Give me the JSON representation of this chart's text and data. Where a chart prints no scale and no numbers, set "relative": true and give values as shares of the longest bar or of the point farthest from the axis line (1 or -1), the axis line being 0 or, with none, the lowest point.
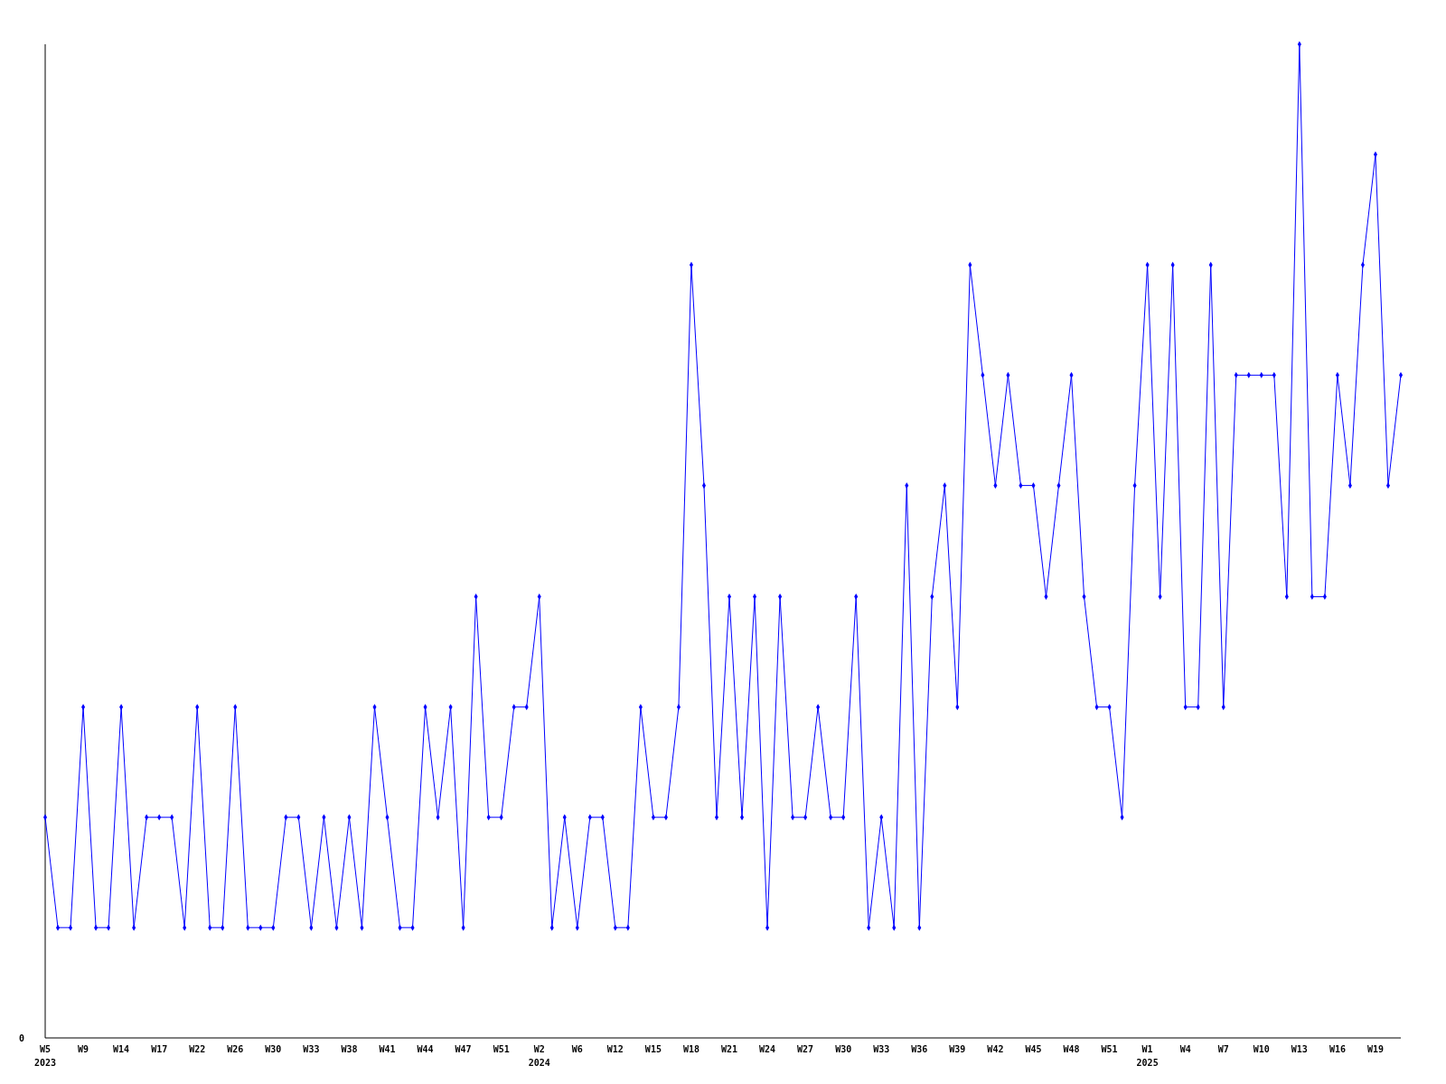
{
  "chart_data": {
    "type": "line",
    "relative": true,
    "marker": "diamond",
    "line_style": "solid",
    "categories": [
      "W5\n2023",
      null,
      null,
      "W9",
      null,
      null,
      "W14",
      null,
      null,
      "W17",
      null,
      null,
      "W22",
      null,
      null,
      "W26",
      null,
      null,
      "W30",
      null,
      null,
      "W33",
      null,
      null,
      "W38",
      null,
      null,
      "W41",
      null,
      null,
      "W44",
      null,
      null,
      "W47",
      null,
      null,
      "W51",
      null,
      null,
      "W2\n2024",
      null,
      null,
      "W6",
      null,
      null,
      "W12",
      null,
      null,
      "W15",
      null,
      null,
      "W18",
      null,
      null,
      "W21",
      null,
      null,
      "W24",
      null,
      null,
      "W27",
      null,
      null,
      "W30",
      null,
      null,
      "W33",
      null,
      null,
      "W36",
      null,
      null,
      "W39",
      null,
      null,
      "W42",
      null,
      null,
      "W45",
      null,
      null,
      "W48",
      null,
      null,
      "W51",
      null,
      null,
      "W1\n2025",
      null,
      null,
      "W4",
      null,
      null,
      "W7",
      null,
      null,
      "W10",
      null,
      null,
      "W13",
      null,
      null,
      "W16",
      null,
      null,
      "W19",
      null,
      null
    ],
    "series": [
      {
        "color": "#0000ff",
        "values": [
          0.222,
          0.111,
          0.111,
          0.333,
          0.111,
          0.111,
          0.333,
          0.111,
          0.222,
          0.222,
          0.222,
          0.111,
          0.333,
          0.111,
          0.111,
          0.333,
          0.111,
          0.111,
          0.111,
          0.222,
          0.222,
          0.111,
          0.222,
          0.111,
          0.222,
          0.111,
          0.333,
          0.222,
          0.111,
          0.111,
          0.333,
          0.222,
          0.333,
          0.111,
          0.444,
          0.222,
          0.222,
          0.333,
          0.333,
          0.444,
          0.111,
          0.222,
          0.111,
          0.222,
          0.222,
          0.111,
          0.111,
          0.333,
          0.222,
          0.222,
          0.333,
          0.778,
          0.556,
          0.222,
          0.444,
          0.222,
          0.444,
          0.111,
          0.444,
          0.222,
          0.222,
          0.333,
          0.222,
          0.222,
          0.444,
          0.111,
          0.222,
          0.111,
          0.556,
          0.111,
          0.444,
          0.556,
          0.333,
          0.778,
          0.667,
          0.556,
          0.667,
          0.556,
          0.556,
          0.444,
          0.556,
          0.667,
          0.444,
          0.333,
          0.333,
          0.222,
          0.556,
          0.778,
          0.444,
          0.778,
          0.333,
          0.333,
          0.778,
          0.333,
          0.667,
          0.667,
          0.667,
          0.667,
          0.444,
          1,
          0.444,
          0.444,
          0.667,
          0.556,
          0.778,
          0.889,
          0.556,
          0.667
        ]
      }
    ],
    "annotations": [
      "0"
    ]
  }
}
